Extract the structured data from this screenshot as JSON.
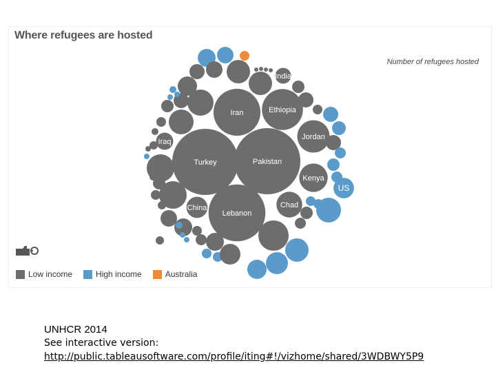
{
  "chart_data": {
    "type": "bubble",
    "title": "Where refugees are hosted",
    "size_legend": "Number of refugees hosted",
    "colors": {
      "Low income": "#6d6d6d",
      "High income": "#5b9bc9",
      "Australia": "#f08a36"
    },
    "legend": [
      {
        "label": "Low income",
        "color": "#6d6d6d"
      },
      {
        "label": "High income",
        "color": "#5b9bc9"
      },
      {
        "label": "Australia",
        "color": "#f08a36"
      }
    ],
    "labeled_bubbles": [
      {
        "label": "Turkey",
        "group": "Low income",
        "relative_size": 1.0
      },
      {
        "label": "Pakistan",
        "group": "Low income",
        "relative_size": 1.0
      },
      {
        "label": "Lebanon",
        "group": "Low income",
        "relative_size": 0.86
      },
      {
        "label": "Iran",
        "group": "Low income",
        "relative_size": 0.71
      },
      {
        "label": "Ethiopia",
        "group": "Low income",
        "relative_size": 0.62
      },
      {
        "label": "Jordan",
        "group": "Low income",
        "relative_size": 0.49
      },
      {
        "label": "Kenya",
        "group": "Low income",
        "relative_size": 0.43
      },
      {
        "label": "Chad",
        "group": "Low income",
        "relative_size": 0.39
      },
      {
        "label": "China",
        "group": "Low income",
        "relative_size": 0.32
      },
      {
        "label": "Iraq",
        "group": "Low income",
        "relative_size": 0.26
      },
      {
        "label": "India",
        "group": "Low income",
        "relative_size": 0.24
      },
      {
        "label": "US",
        "group": "High income",
        "relative_size": 0.31
      }
    ]
  },
  "footer": {
    "source": "UNHCR 2014",
    "see_interactive": "See interactive version:",
    "link": "http://public.tableausoftware.com/profile/iting#!/vizhome/shared/3WDBWY5P9"
  }
}
